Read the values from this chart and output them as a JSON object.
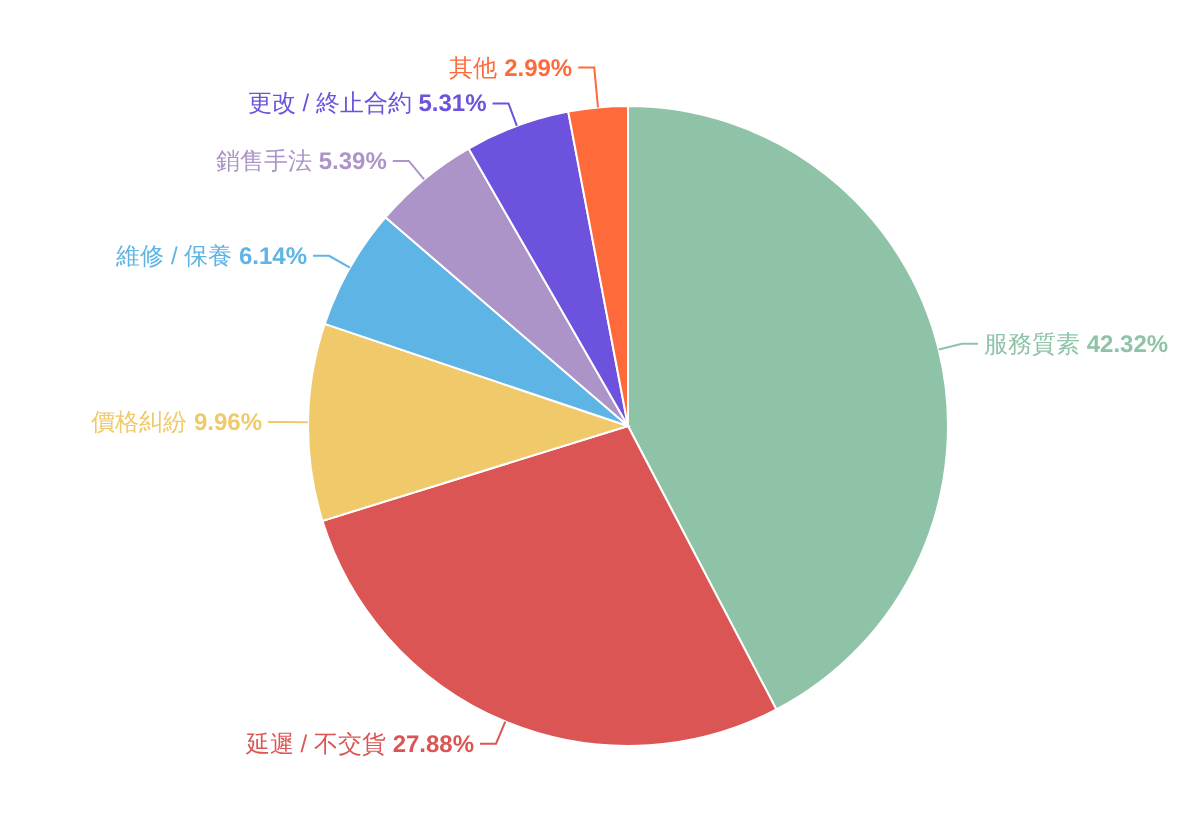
{
  "chart_data": {
    "type": "pie",
    "categories": [
      "服務質素",
      "延遲 / 不交貨",
      "價格糾紛",
      "維修 / 保養",
      "銷售手法",
      "更改 / 終止合約",
      "其他"
    ],
    "values": [
      42.32,
      27.88,
      9.96,
      6.14,
      5.39,
      5.31,
      2.99
    ],
    "value_labels": [
      "42.32%",
      "27.88%",
      "9.96%",
      "6.14%",
      "5.39%",
      "5.31%",
      "2.99%"
    ],
    "colors": [
      "#8fc3a8",
      "#dc5555",
      "#f0ca6a",
      "#5eb4e4",
      "#ac94c8",
      "#6c52dc",
      "#ff6a3a"
    ],
    "legend": false
  }
}
